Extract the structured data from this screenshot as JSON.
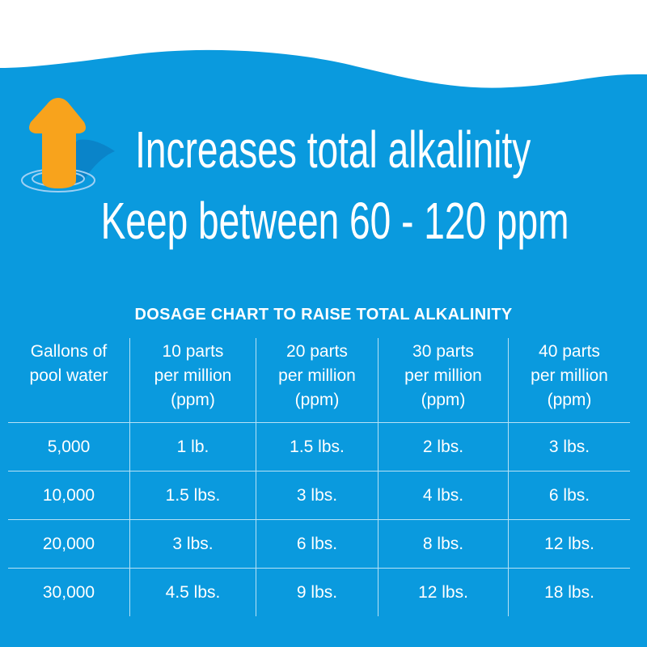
{
  "colors": {
    "background": "#0a9ade",
    "arrow": "#f8a31c",
    "text": "#ffffff"
  },
  "icon": "up-arrow-in-water-icon",
  "headline": {
    "line1": "Increases total alkalinity",
    "line2": "Keep between 60 - 120 ppm"
  },
  "chart": {
    "title": "DOSAGE CHART TO RAISE TOTAL ALKALINITY",
    "headers": [
      [
        "Gallons of",
        "pool water"
      ],
      [
        "10 parts",
        "per million",
        "(ppm)"
      ],
      [
        "20 parts",
        "per million",
        "(ppm)"
      ],
      [
        "30 parts",
        "per million",
        "(ppm)"
      ],
      [
        "40 parts",
        "per million",
        "(ppm)"
      ]
    ],
    "rows": [
      [
        "5,000",
        "1 lb.",
        "1.5 lbs.",
        "2 lbs.",
        "3 lbs."
      ],
      [
        "10,000",
        "1.5 lbs.",
        "3 lbs.",
        "4 lbs.",
        "6 lbs."
      ],
      [
        "20,000",
        "3 lbs.",
        "6 lbs.",
        "8 lbs.",
        "12 lbs."
      ],
      [
        "30,000",
        "4.5 lbs.",
        "9 lbs.",
        "12 lbs.",
        "18 lbs."
      ]
    ]
  }
}
